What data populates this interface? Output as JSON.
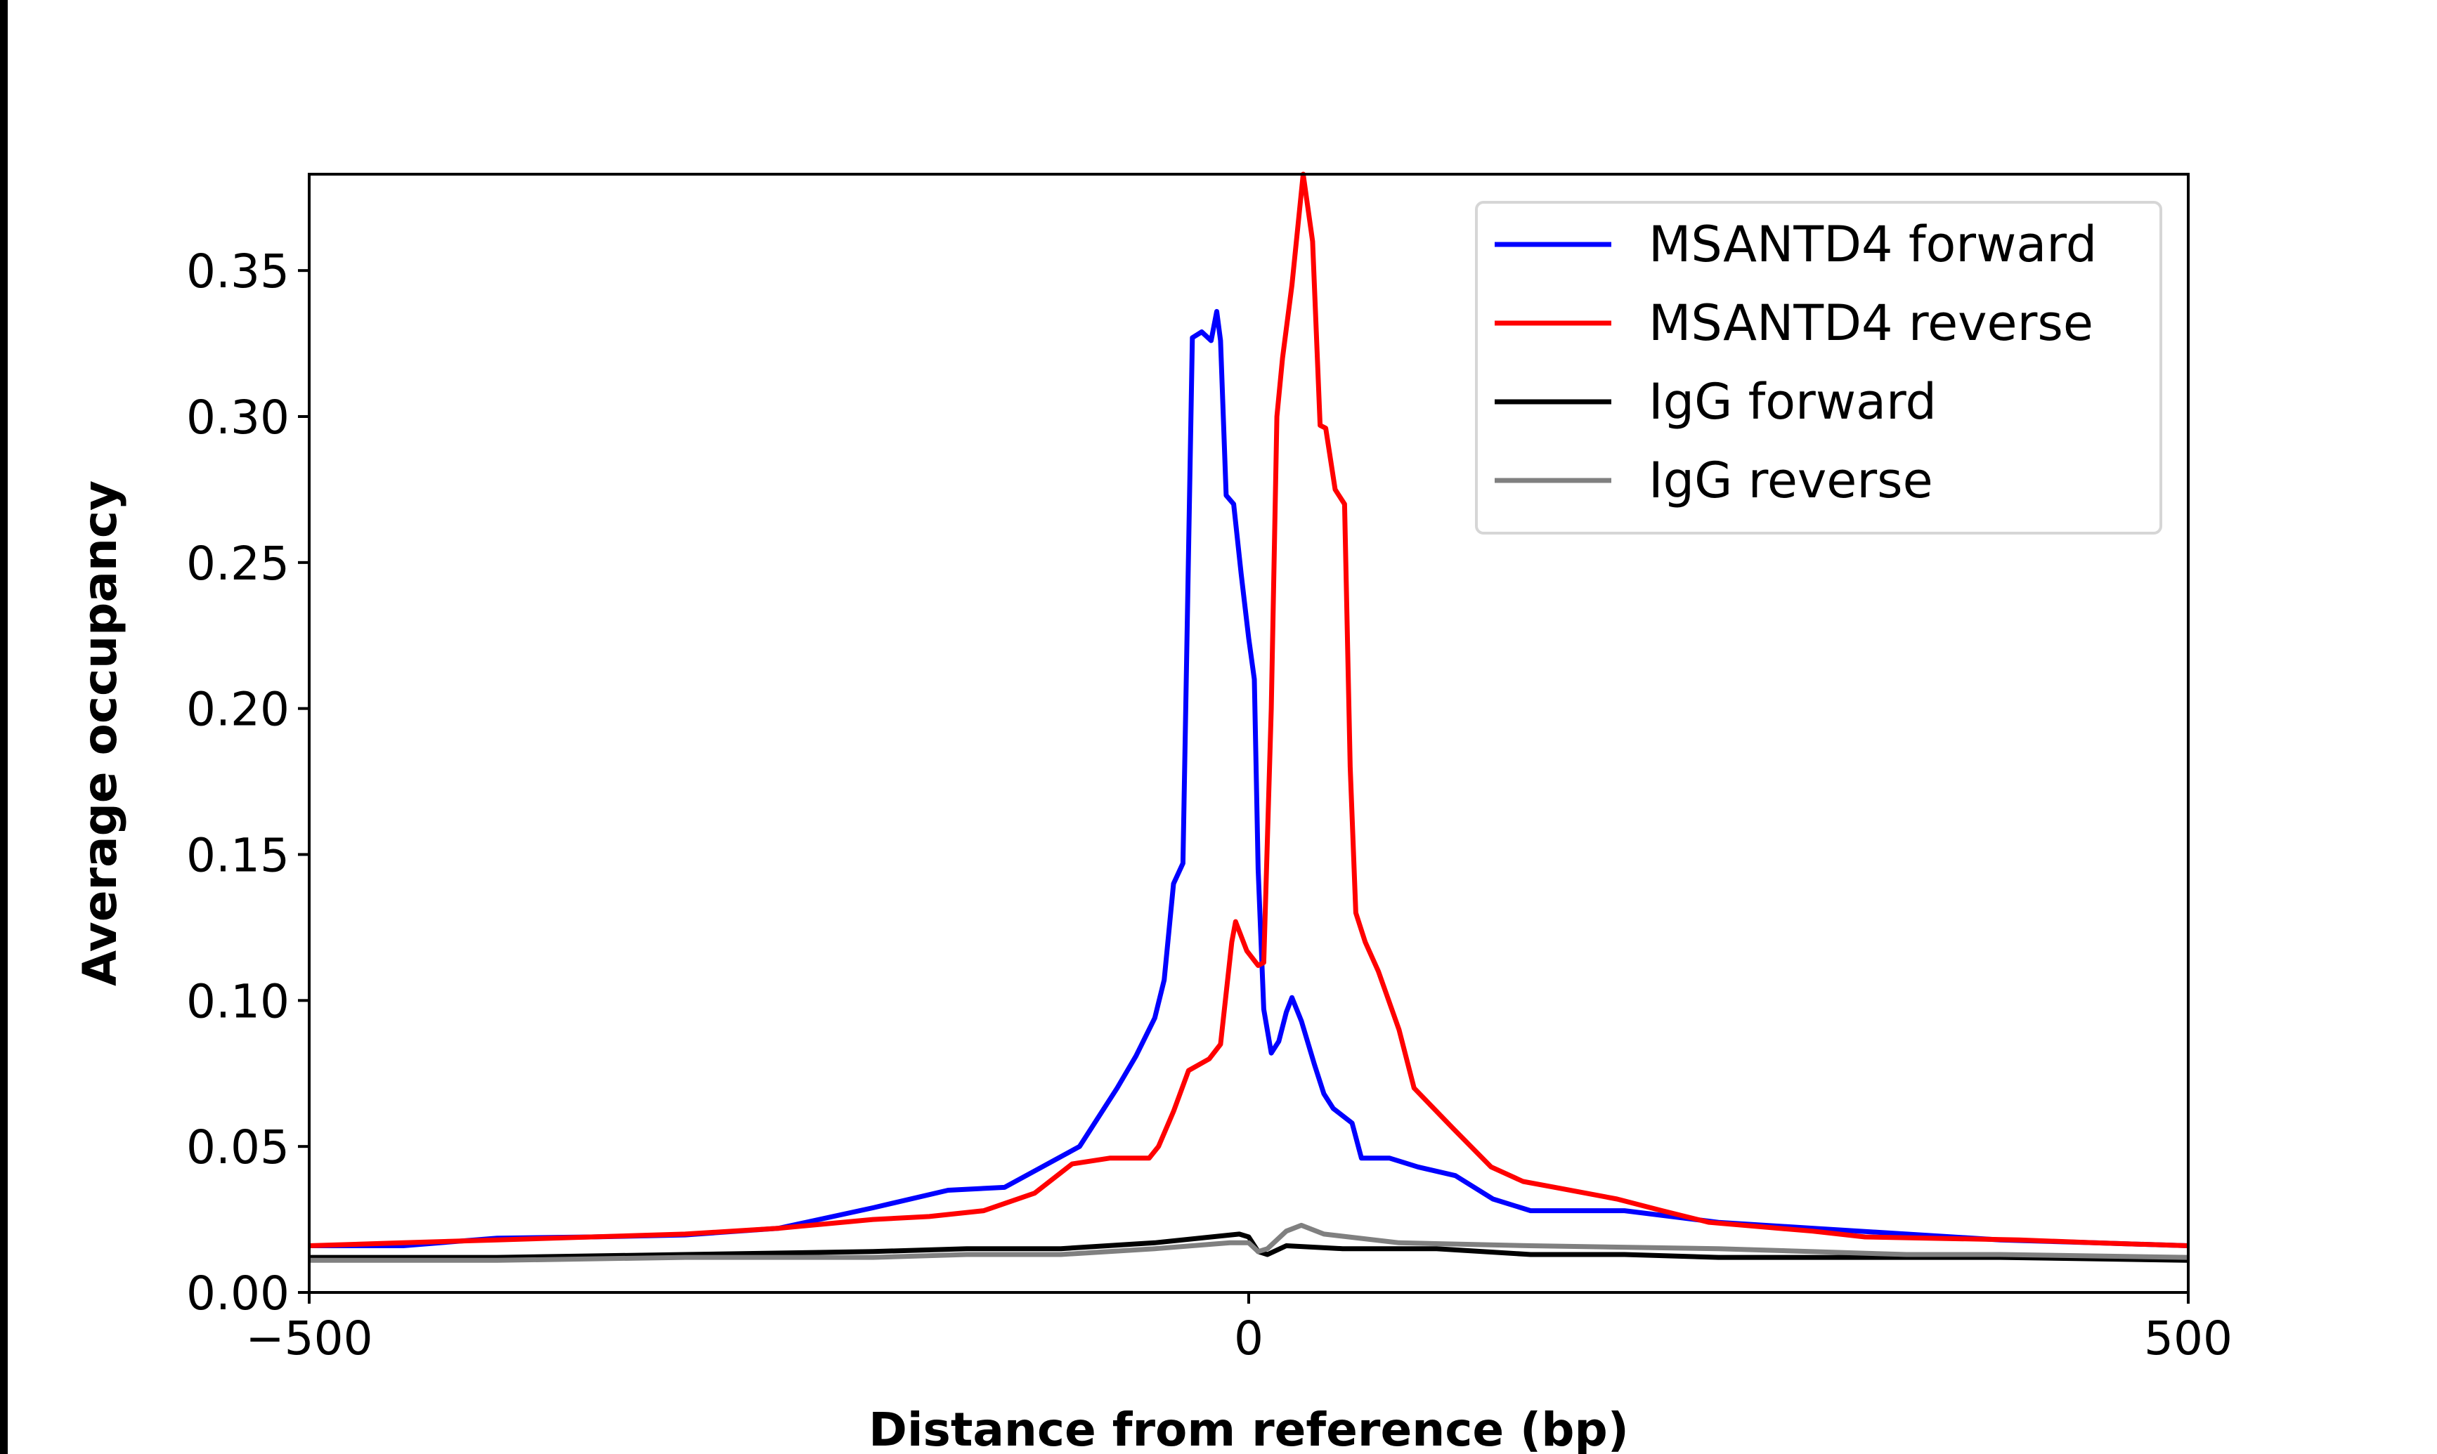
{
  "chart_data": {
    "type": "line",
    "title": "",
    "xlabel": "Distance from reference (bp)",
    "ylabel": "Average occupancy",
    "xlim": [
      -500,
      500
    ],
    "ylim": [
      0,
      0.383
    ],
    "xticks": [
      -500,
      0,
      500
    ],
    "xtick_labels": [
      "−500",
      "0",
      "500"
    ],
    "yticks": [
      0,
      0.05,
      0.1,
      0.15,
      0.2,
      0.25,
      0.3,
      0.35
    ],
    "ytick_labels": [
      "0.00",
      "0.05",
      "0.10",
      "0.15",
      "0.20",
      "0.25",
      "0.30",
      "0.35"
    ],
    "grid": false,
    "legend_position": "top-right",
    "series": [
      {
        "name": "MSANTD4 forward",
        "color": "#0000ff",
        "x": [
          -500,
          -450,
          -400,
          -350,
          -300,
          -250,
          -200,
          -160,
          -130,
          -110,
          -90,
          -70,
          -60,
          -50,
          -45,
          -40,
          -35,
          -33,
          -30,
          -25,
          -20,
          -17,
          -15,
          -12,
          -8,
          -4,
          0,
          3,
          5,
          8,
          12,
          16,
          20,
          23,
          28,
          35,
          40,
          45,
          55,
          60,
          75,
          90,
          110,
          130,
          150,
          200,
          250,
          300,
          350,
          400,
          450,
          500
        ],
        "y": [
          0.016,
          0.016,
          0.0186,
          0.019,
          0.0197,
          0.022,
          0.029,
          0.035,
          0.036,
          0.043,
          0.05,
          0.07,
          0.081,
          0.094,
          0.107,
          0.14,
          0.147,
          0.219,
          0.327,
          0.329,
          0.326,
          0.336,
          0.326,
          0.273,
          0.27,
          0.246,
          0.224,
          0.21,
          0.145,
          0.097,
          0.082,
          0.086,
          0.096,
          0.101,
          0.093,
          0.078,
          0.068,
          0.063,
          0.058,
          0.046,
          0.046,
          0.043,
          0.04,
          0.032,
          0.028,
          0.028,
          0.024,
          0.022,
          0.02,
          0.018,
          0.017,
          0.016
        ]
      },
      {
        "name": "MSANTD4 reverse",
        "color": "#ff0000",
        "x": [
          -500,
          -450,
          -400,
          -350,
          -300,
          -250,
          -200,
          -170,
          -141,
          -114,
          -94,
          -74,
          -53,
          -48,
          -40,
          -32,
          -21,
          -15,
          -9,
          -7,
          -1,
          5,
          8,
          12,
          15,
          18,
          23,
          29,
          34,
          38,
          41,
          46,
          51,
          54,
          57,
          62,
          69,
          80,
          88,
          109,
          129,
          146,
          163,
          196,
          220,
          245,
          300,
          328,
          410,
          450,
          500
        ],
        "y": [
          0.016,
          0.017,
          0.018,
          0.019,
          0.02,
          0.022,
          0.025,
          0.026,
          0.028,
          0.034,
          0.044,
          0.046,
          0.046,
          0.05,
          0.062,
          0.076,
          0.08,
          0.085,
          0.12,
          0.127,
          0.117,
          0.112,
          0.113,
          0.2,
          0.3,
          0.32,
          0.345,
          0.383,
          0.36,
          0.297,
          0.296,
          0.275,
          0.27,
          0.18,
          0.13,
          0.12,
          0.11,
          0.09,
          0.07,
          0.056,
          0.043,
          0.038,
          0.036,
          0.032,
          0.028,
          0.024,
          0.021,
          0.019,
          0.018,
          0.017,
          0.016
        ]
      },
      {
        "name": "IgG forward",
        "color": "#000000",
        "x": [
          -500,
          -400,
          -300,
          -200,
          -150,
          -100,
          -50,
          -20,
          -5,
          0,
          5,
          10,
          20,
          50,
          100,
          150,
          200,
          250,
          300,
          400,
          500
        ],
        "y": [
          0.012,
          0.012,
          0.013,
          0.014,
          0.015,
          0.015,
          0.017,
          0.019,
          0.02,
          0.019,
          0.014,
          0.013,
          0.016,
          0.015,
          0.015,
          0.013,
          0.013,
          0.012,
          0.012,
          0.012,
          0.011
        ]
      },
      {
        "name": "IgG reverse",
        "color": "#808080",
        "x": [
          -500,
          -400,
          -300,
          -200,
          -150,
          -100,
          -50,
          -10,
          0,
          5,
          10,
          20,
          28,
          40,
          80,
          150,
          250,
          350,
          400,
          500
        ],
        "y": [
          0.011,
          0.011,
          0.012,
          0.012,
          0.013,
          0.013,
          0.015,
          0.017,
          0.017,
          0.014,
          0.015,
          0.021,
          0.023,
          0.02,
          0.017,
          0.016,
          0.015,
          0.013,
          0.013,
          0.012
        ]
      }
    ]
  }
}
